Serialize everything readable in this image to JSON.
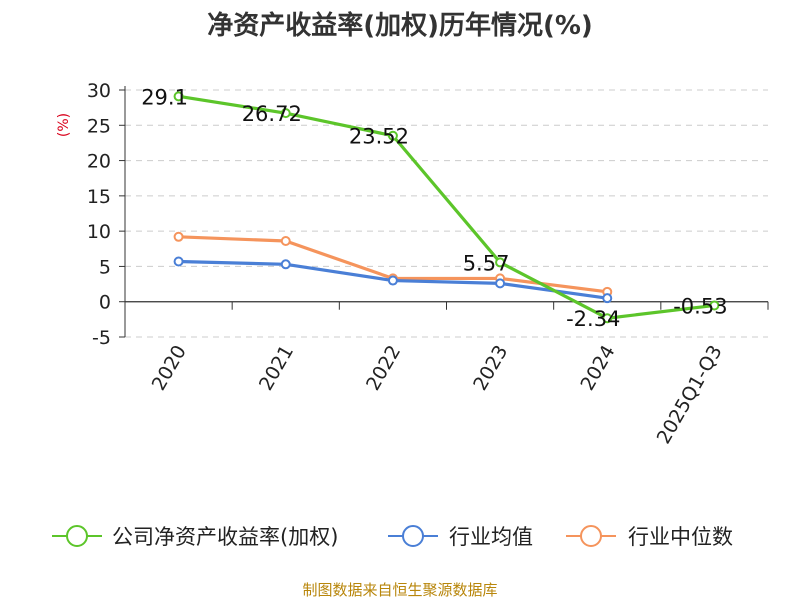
{
  "chart_data": {
    "type": "line",
    "title": "净资产收益率(加权)历年情况(%)",
    "ylabel": "(%)",
    "xlabel": "",
    "categories": [
      "2020",
      "2021",
      "2022",
      "2023",
      "2024",
      "2025Q1-Q3"
    ],
    "ylim": [
      -5,
      30
    ],
    "yticks": [
      30,
      25,
      20,
      15,
      10,
      5,
      0,
      -5
    ],
    "grid": true,
    "legend_position": "bottom",
    "series": [
      {
        "name": "公司净资产收益率(加权)",
        "color": "#5cc52a",
        "values": [
          29.1,
          26.72,
          23.52,
          5.57,
          -2.34,
          -0.53
        ],
        "labels": [
          "29.1",
          "26.72",
          "23.52",
          "5.57",
          "-2.34",
          "-0.53"
        ]
      },
      {
        "name": "行业均值",
        "color": "#4a7fd6",
        "values": [
          5.7,
          5.3,
          3.0,
          2.6,
          0.5,
          null
        ]
      },
      {
        "name": "行业中位数",
        "color": "#f5945c",
        "values": [
          9.2,
          8.6,
          3.3,
          3.3,
          1.4,
          null
        ]
      }
    ]
  },
  "source": "制图数据来自恒生聚源数据库"
}
